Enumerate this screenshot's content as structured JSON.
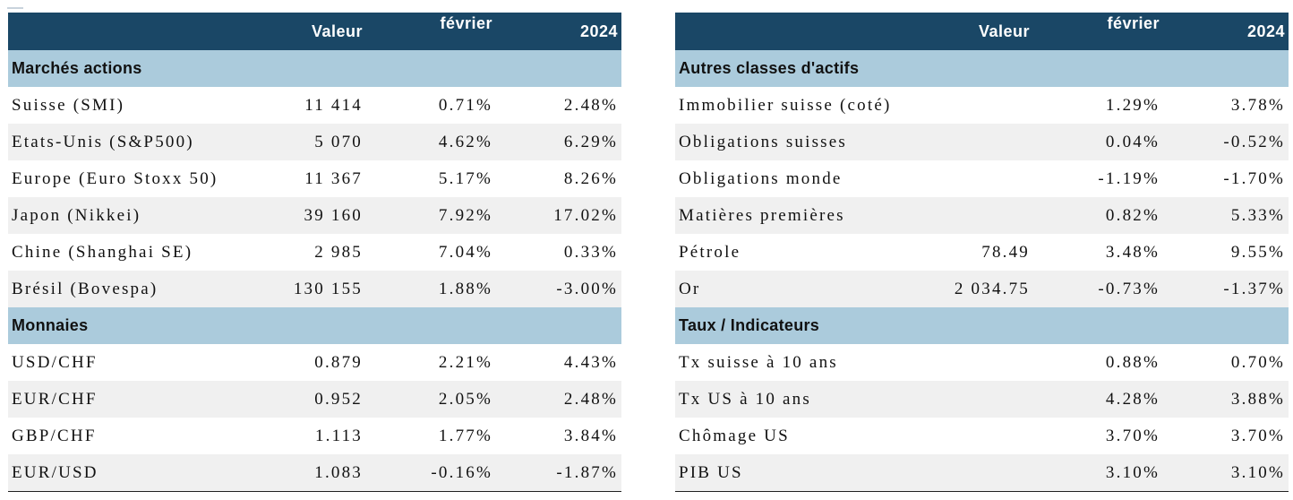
{
  "left": {
    "headers": [
      "",
      "Valeur",
      "février",
      "2024"
    ],
    "sections": [
      {
        "title": "Marchés actions",
        "rows": [
          [
            "Suisse (SMI)",
            "11 414",
            "0.71%",
            "2.48%"
          ],
          [
            "Etats-Unis (S&P500)",
            "5 070",
            "4.62%",
            "6.29%"
          ],
          [
            "Europe (Euro Stoxx 50)",
            "11 367",
            "5.17%",
            "8.26%"
          ],
          [
            "Japon (Nikkei)",
            "39 160",
            "7.92%",
            "17.02%"
          ],
          [
            "Chine (Shanghai SE)",
            "2 985",
            "7.04%",
            "0.33%"
          ],
          [
            "Brésil (Bovespa)",
            "130 155",
            "1.88%",
            "-3.00%"
          ]
        ]
      },
      {
        "title": "Monnaies",
        "rows": [
          [
            "USD/CHF",
            "0.879",
            "2.21%",
            "4.43%"
          ],
          [
            "EUR/CHF",
            "0.952",
            "2.05%",
            "2.48%"
          ],
          [
            "GBP/CHF",
            "1.113",
            "1.77%",
            "3.84%"
          ],
          [
            "EUR/USD",
            "1.083",
            "-0.16%",
            "-1.87%"
          ]
        ]
      }
    ]
  },
  "right": {
    "headers": [
      "",
      "Valeur",
      "février",
      "2024"
    ],
    "sections": [
      {
        "title": "Autres classes d'actifs",
        "rows": [
          [
            "Immobilier suisse (coté)",
            "",
            "1.29%",
            "3.78%"
          ],
          [
            "Obligations suisses",
            "",
            "0.04%",
            "-0.52%"
          ],
          [
            "Obligations monde",
            "",
            "-1.19%",
            "-1.70%"
          ],
          [
            "Matières premières",
            "",
            "0.82%",
            "5.33%"
          ],
          [
            "Pétrole",
            "78.49",
            "3.48%",
            "9.55%"
          ],
          [
            "Or",
            "2 034.75",
            "-0.73%",
            "-1.37%"
          ]
        ]
      },
      {
        "title": "Taux / Indicateurs",
        "rows": [
          [
            "Tx suisse à 10 ans",
            "",
            "0.88%",
            "0.70%"
          ],
          [
            "Tx US à 10 ans",
            "",
            "4.28%",
            "3.88%"
          ],
          [
            "Chômage US",
            "",
            "3.70%",
            "3.70%"
          ],
          [
            "PIB US",
            "",
            "3.10%",
            "3.10%"
          ]
        ]
      }
    ]
  }
}
